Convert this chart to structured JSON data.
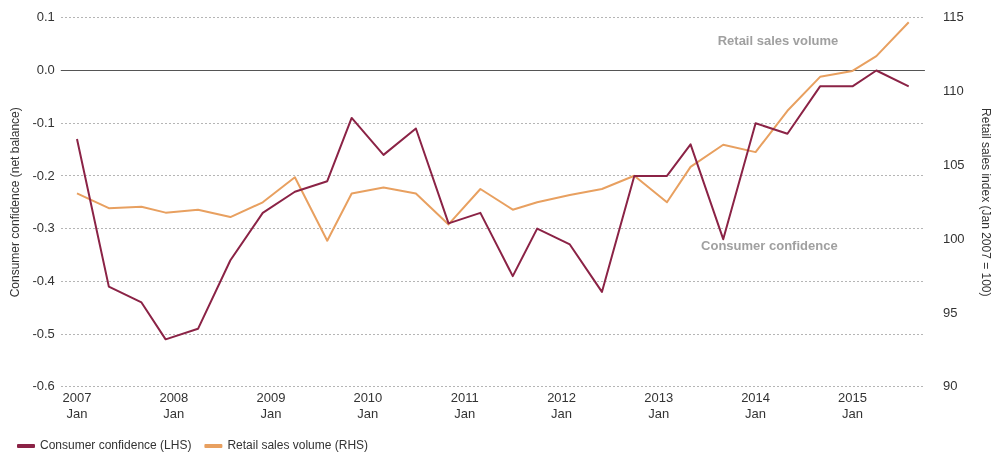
{
  "chart_data": {
    "type": "line",
    "ylabel": "Consumer confidence (net balance)",
    "y2label": "Retail sales index (Jan 2007 = 100)",
    "x": [
      "2007-01",
      "2007-05",
      "2007-09",
      "2007-12",
      "2008-04",
      "2008-08",
      "2008-12",
      "2009-04",
      "2009-08",
      "2009-11",
      "2010-03",
      "2010-07",
      "2010-11",
      "2011-03",
      "2011-07",
      "2011-10",
      "2012-02",
      "2012-06",
      "2012-10",
      "2013-02",
      "2013-05",
      "2013-09",
      "2014-01",
      "2014-05",
      "2014-09",
      "2015-01",
      "2015-04",
      "2015-08"
    ],
    "series": [
      {
        "name": "Consumer confidence (LHS)",
        "color": "#8b2346",
        "values": [
          -0.13,
          -0.41,
          -0.44,
          -0.51,
          -0.49,
          -0.36,
          -0.27,
          -0.23,
          -0.21,
          -0.09,
          -0.16,
          -0.11,
          -0.29,
          -0.27,
          -0.39,
          -0.3,
          -0.33,
          -0.42,
          -0.2,
          -0.2,
          -0.14,
          -0.32,
          -0.1,
          -0.12,
          -0.03,
          -0.03,
          0.0,
          -0.03
        ]
      },
      {
        "name": "Retail sales volume (RHS)",
        "color": "#e8a060",
        "axis": "y2",
        "values": [
          103.1,
          102.1,
          102.2,
          101.8,
          102.0,
          101.5,
          102.5,
          104.2,
          99.9,
          103.1,
          103.5,
          103.1,
          101.0,
          103.4,
          102.0,
          102.5,
          103.0,
          103.4,
          104.3,
          102.5,
          104.9,
          106.4,
          105.9,
          108.7,
          111.0,
          111.4,
          112.4,
          114.7
        ]
      }
    ],
    "xlim": [
      "2006-11",
      "2015-10"
    ],
    "xticks": [
      {
        "value": "2007-01",
        "label": "2007\nJan"
      },
      {
        "value": "2008-01",
        "label": "2008\nJan"
      },
      {
        "value": "2009-01",
        "label": "2009\nJan"
      },
      {
        "value": "2010-01",
        "label": "2010\nJan"
      },
      {
        "value": "2011-01",
        "label": "2011\nJan"
      },
      {
        "value": "2012-01",
        "label": "2012\nJan"
      },
      {
        "value": "2013-01",
        "label": "2013\nJan"
      },
      {
        "value": "2014-01",
        "label": "2014\nJan"
      },
      {
        "value": "2015-01",
        "label": "2015\nJan"
      }
    ],
    "ylim": [
      -0.6,
      0.1
    ],
    "yticks": [
      {
        "value": -0.6,
        "label": "-0.6"
      },
      {
        "value": -0.5,
        "label": "-0.5"
      },
      {
        "value": -0.4,
        "label": "-0.4"
      },
      {
        "value": -0.3,
        "label": "-0.3"
      },
      {
        "value": -0.2,
        "label": "-0.2"
      },
      {
        "value": -0.1,
        "label": "-0.1"
      },
      {
        "value": 0,
        "label": "0.0"
      },
      {
        "value": 0.1,
        "label": "0.1"
      }
    ],
    "y2lim": [
      90,
      115
    ],
    "y2ticks": [
      90,
      95,
      100,
      105,
      110,
      115
    ],
    "ref_lines": [
      {
        "axis": "y",
        "value": 0,
        "color": "#555555"
      }
    ],
    "annotations": [
      "Retail sales volume",
      "Consumer confidence"
    ],
    "grid": "y",
    "legend": "bottom left",
    "marker": "none",
    "line_style": "solid"
  }
}
